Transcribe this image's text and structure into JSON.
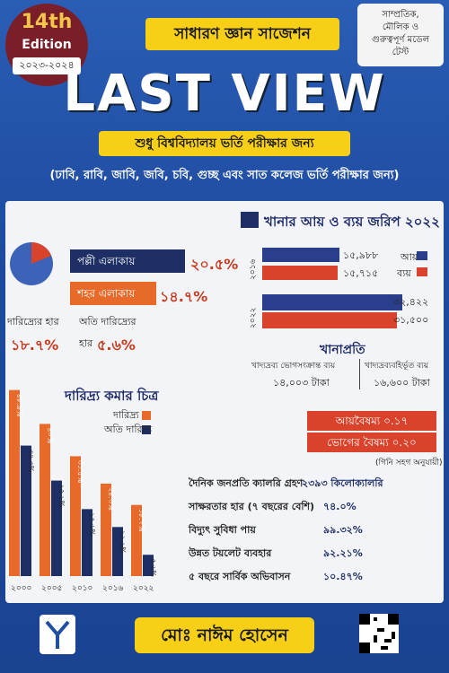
{
  "badge": {
    "edition_num": "14th",
    "edition_word": "Edition",
    "years": "২০২৩-২০২৪"
  },
  "top_right_note": {
    "line1": "সাম্প্রতিক,",
    "line2": "মৌলিক ও",
    "line3": "গুরুত্বপূর্ণ মডেল",
    "line4": "টেস্ট"
  },
  "header": {
    "suggestion": "সাধারণ জ্ঞান সাজেশন",
    "title": "LAST VIEW",
    "subtitle": "শুধু বিশ্ববিদ্যালয় ভর্তি পরীক্ষার জন্য",
    "universities": "(ঢাবি, রাবি, জাবি, জবি, চবি, গুচ্ছ এবং সাত কলেজ ভর্তি পরীক্ষার জন্য)"
  },
  "poverty_area": {
    "rural_label": "পল্লী এলাকায়",
    "rural_value": "২০.৫%",
    "urban_label": "শহর এলাকায়",
    "urban_value": "১৪.৭%",
    "poverty_rate_label": "দারিদ্র্যের হার",
    "poverty_rate_value": "১৮.৭%",
    "extreme_label": "অতি দারিদ্র্যের",
    "extreme_label2": "হার",
    "extreme_value": "৫.৬%"
  },
  "income_survey": {
    "title": "খানার আয় ও ব্যয় জরিপ ২০২২",
    "legend_income": "আয়",
    "legend_expense": "ব্যয়",
    "group1_label": "২০১৬",
    "group1_income": "১৫,৯৮৮",
    "group1_expense": "১৫,৭১৫",
    "group2_label": "২০২২",
    "group2_income": "৩২,৪২২",
    "group2_expense": "৩১,৫০০"
  },
  "per_household": {
    "title": "খানাপ্রতি",
    "food_label": "খাদ্যদ্রব্য ভোগসংক্রান্ত ব্যয়",
    "food_value": "১৪,০০৩ টাকা",
    "nonfood_label": "খাদ্যদ্রব্যবহির্ভূত ব্যয়",
    "nonfood_value": "১৬,৬০০ টাকা"
  },
  "poverty_reduction": {
    "title": "দারিদ্র্য কমার চিত্র",
    "legend_poverty": "দারিদ্র্য",
    "legend_extreme": "অতি দারিদ্র্য",
    "years": [
      "২০০০",
      "২০০৫",
      "২০১০",
      "২০১৬",
      "২০২২"
    ],
    "poverty_labels": [
      "৪৮.৯%",
      "৪০%",
      "৩১.৫%",
      "২৪.৩%",
      "১৮.৭%"
    ],
    "extreme_labels": [
      "৩৪.৩%",
      "২৫.১%",
      "১৭.৬%",
      "১২.৯%",
      "৫.৬%"
    ]
  },
  "chart_data": {
    "type": "bar",
    "categories": [
      "২০০০",
      "২০০৫",
      "২০১০",
      "২০১৬",
      "২০২২"
    ],
    "series": [
      {
        "name": "দারিদ্র্য",
        "values": [
          48.9,
          40,
          31.5,
          24.3,
          18.7
        ],
        "color": "#e86a2a"
      },
      {
        "name": "অতি দারিদ্র্য",
        "values": [
          34.3,
          25.1,
          17.6,
          12.9,
          5.6
        ],
        "color": "#1e2f66"
      }
    ],
    "ylim": [
      0,
      50
    ]
  },
  "inequality": {
    "income_label": "আয়বৈষম্য ০.১৭",
    "consumption_label": "ভোগের বৈষম্য ০.২০",
    "note": "(গিনি সহগ অনুযায়ী)"
  },
  "indicators": [
    {
      "label": "দৈনিক জনপ্রতি ক্যালরি গ্রহণ",
      "value": "২৩৯৩ কিলোক্যালরি"
    },
    {
      "label": "সাক্ষরতার হার (৭ বছরের বেশি)",
      "value": "৭৪.০%"
    },
    {
      "label": "বিদ্যুৎ সুবিধা পায়",
      "value": "৯৯.৩২%"
    },
    {
      "label": "উন্নত টয়লেট ব্যবহার",
      "value": "৯২.২১%"
    },
    {
      "label": "৫ বছরে সার্বিক অভিবাসন",
      "value": "১০.৪৭%"
    }
  ],
  "author": "মোঃ নাঈম হোসেন",
  "colors": {
    "accent_yellow": "#f6cf16",
    "bar_orange": "#e86a2a",
    "bar_navy": "#1e2f66",
    "cover_blue": "#1f4fa3"
  }
}
